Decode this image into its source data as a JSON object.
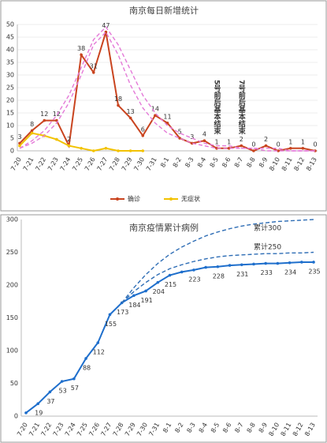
{
  "chart_data": [
    {
      "type": "line",
      "title": "南京每日新增统计",
      "categories": [
        "7-20",
        "7-21",
        "7-22",
        "7-23",
        "7-24",
        "7-25",
        "7-26",
        "7-27",
        "7-28",
        "7-29",
        "7-30",
        "7-31",
        "8-1",
        "8-2",
        "8-3",
        "8-4",
        "8-5",
        "8-6",
        "8-7",
        "8-8",
        "8-9",
        "8-10",
        "8-11",
        "8-12",
        "8-13"
      ],
      "ylim": [
        0,
        50
      ],
      "yticks": [
        0,
        5,
        10,
        15,
        20,
        25,
        30,
        35,
        40,
        45,
        50
      ],
      "grid": true,
      "legend": "bottom",
      "series": [
        {
          "name": "确诊",
          "color": "#c9441f",
          "markers": true,
          "labels": true,
          "values": [
            3,
            8,
            12,
            12,
            2,
            38,
            31,
            47,
            18,
            13,
            6,
            14,
            11,
            5,
            3,
            4,
            1,
            1,
            2,
            0,
            2,
            0,
            1,
            1,
            0
          ]
        },
        {
          "name": "无症状",
          "color": "#f2c200",
          "markers": true,
          "values": [
            2,
            7,
            6,
            4.5,
            2,
            1,
            0,
            1,
            0,
            0,
            0,
            null,
            null,
            null,
            null,
            null,
            null,
            null,
            null,
            null,
            null,
            null,
            null,
            null,
            null
          ]
        },
        {
          "color": "#e47ad8",
          "dash": true,
          "values": [
            1,
            4,
            8,
            14,
            22,
            33,
            44,
            49,
            42,
            32,
            22,
            15,
            10,
            7,
            5,
            3,
            2,
            2,
            1,
            1,
            1,
            1,
            0,
            0,
            0
          ]
        },
        {
          "color": "#e47ad8",
          "dash": true,
          "values": [
            1,
            3,
            6,
            11,
            19,
            30,
            42,
            47,
            38,
            26,
            17,
            11,
            7,
            5,
            3,
            2,
            1,
            1,
            1,
            1,
            0,
            0,
            0,
            0,
            0
          ]
        }
      ],
      "annotations": [
        {
          "text": "5号前后基本结束",
          "x": "8-5"
        },
        {
          "text": "7号前后基本结束",
          "x": "8-7"
        }
      ]
    },
    {
      "type": "line",
      "title": "南京疫情累计病例",
      "categories": [
        "7-20",
        "7-21",
        "7-22",
        "7-23",
        "7-24",
        "7-25",
        "7-26",
        "7-27",
        "7-28",
        "7-29",
        "7-30",
        "7-31",
        "8-1",
        "8-2",
        "8-3",
        "8-4",
        "8-5",
        "8-6",
        "8-7",
        "8-8",
        "8-9",
        "8-10",
        "8-11",
        "8-12",
        "8-13"
      ],
      "ylim": [
        0,
        300
      ],
      "yticks": [
        0,
        50,
        100,
        150,
        200,
        250,
        300
      ],
      "grid": false,
      "series": [
        {
          "color": "#1f6fcc",
          "markers": true,
          "values": [
            5,
            19,
            37,
            53,
            57,
            88,
            112,
            155,
            173,
            184,
            191,
            204,
            215,
            220,
            223,
            227,
            228,
            230,
            231,
            232,
            233,
            233,
            234,
            235,
            235
          ],
          "value_labels": [
            null,
            "19",
            "37",
            "53",
            "57",
            "88",
            "112",
            "155",
            "173",
            "184",
            "191",
            "204",
            "215",
            null,
            "223",
            null,
            "228",
            null,
            "231",
            null,
            "233",
            null,
            "234",
            null,
            "235"
          ]
        },
        {
          "color": "#2e6db5",
          "dash": true,
          "values": [
            null,
            null,
            null,
            null,
            null,
            null,
            null,
            null,
            173,
            196,
            216,
            233,
            247,
            258,
            267,
            275,
            281,
            286,
            290,
            293,
            295,
            297,
            298,
            299,
            300
          ]
        },
        {
          "color": "#2e6db5",
          "dash": true,
          "values": [
            null,
            null,
            null,
            null,
            null,
            null,
            null,
            null,
            173,
            190,
            204,
            216,
            225,
            231,
            236,
            240,
            243,
            245,
            246,
            247,
            248,
            248,
            249,
            249,
            250
          ]
        }
      ],
      "annotations": [
        {
          "text": "累计300",
          "x": "8-8",
          "y": 287
        },
        {
          "text": "累计250",
          "x": "8-8",
          "y": 258
        }
      ]
    }
  ]
}
